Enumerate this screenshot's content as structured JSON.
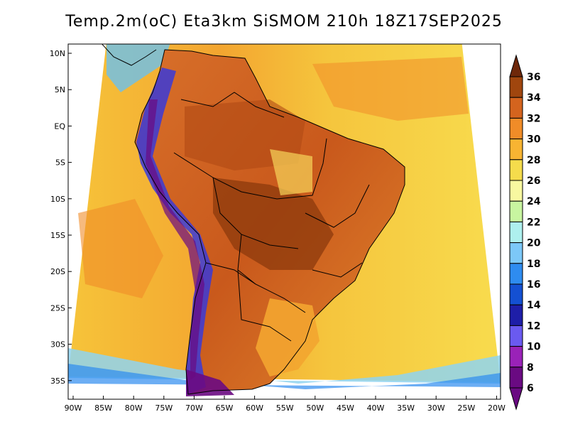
{
  "title": "Temp.2m(oC) Eta3km SiSMOM 210h 18Z17SEP2025",
  "map": {
    "lat_labels": [
      "10N",
      "5N",
      "EQ",
      "5S",
      "10S",
      "15S",
      "20S",
      "25S",
      "30S",
      "35S"
    ],
    "lon_labels": [
      "90W",
      "85W",
      "80W",
      "75W",
      "70W",
      "65W",
      "60W",
      "55W",
      "50W",
      "45W",
      "40W",
      "35W",
      "30W",
      "25W",
      "20W"
    ],
    "region": "South America",
    "lon_range": [
      -90,
      -20
    ],
    "lat_range": [
      -38,
      12
    ]
  },
  "colorbar": {
    "units": "oC",
    "levels": [
      "6",
      "8",
      "10",
      "12",
      "14",
      "16",
      "18",
      "20",
      "22",
      "24",
      "26",
      "28",
      "30",
      "32",
      "34",
      "36"
    ],
    "colors": [
      "#6a0a82",
      "#9a22b8",
      "#6a5af0",
      "#1e1ea8",
      "#1450d2",
      "#2e8cf0",
      "#7cc8f8",
      "#aef0ee",
      "#c8f5a0",
      "#f8f8a0",
      "#f5dc4c",
      "#f8b432",
      "#f08c28",
      "#d4641e",
      "#a0460e",
      "#6e280a"
    ]
  }
}
